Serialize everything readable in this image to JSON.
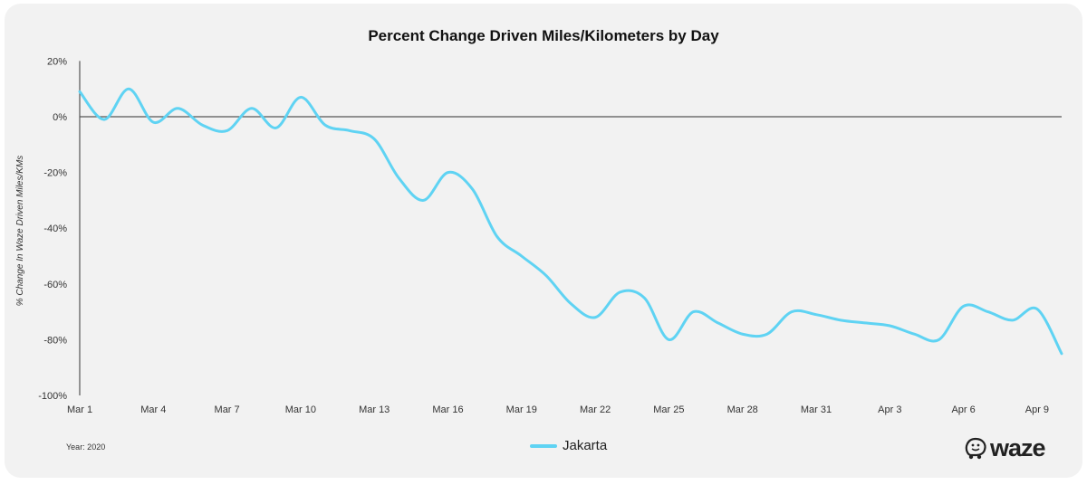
{
  "chart_data": {
    "type": "line",
    "title": "Percent Change Driven Miles/Kilometers by Day",
    "xlabel": "",
    "ylabel": "% Change In Waze Driven Miles/KMs",
    "ylim": [
      -100,
      20
    ],
    "yticks": [
      20,
      0,
      -20,
      -40,
      -60,
      -80,
      -100
    ],
    "ytick_labels": [
      "20%",
      "0%",
      "-20%",
      "-40%",
      "-60%",
      "-80%",
      "-100%"
    ],
    "xtick_labels": [
      "Mar 1",
      "Mar 4",
      "Mar 7",
      "Mar 10",
      "Mar 13",
      "Mar 16",
      "Mar 19",
      "Mar 22",
      "Mar 25",
      "Mar 28",
      "Mar 31",
      "Apr 3",
      "Apr 6",
      "Apr 9"
    ],
    "xtick_step_days": 3,
    "x_days": [
      "Mar 1",
      "Mar 2",
      "Mar 3",
      "Mar 4",
      "Mar 5",
      "Mar 6",
      "Mar 7",
      "Mar 8",
      "Mar 9",
      "Mar 10",
      "Mar 11",
      "Mar 12",
      "Mar 13",
      "Mar 14",
      "Mar 15",
      "Mar 16",
      "Mar 17",
      "Mar 18",
      "Mar 19",
      "Mar 20",
      "Mar 21",
      "Mar 22",
      "Mar 23",
      "Mar 24",
      "Mar 25",
      "Mar 26",
      "Mar 27",
      "Mar 28",
      "Mar 29",
      "Mar 30",
      "Mar 31",
      "Apr 1",
      "Apr 2",
      "Apr 3",
      "Apr 4",
      "Apr 5",
      "Apr 6",
      "Apr 7",
      "Apr 8",
      "Apr 9",
      "Apr 10"
    ],
    "series": [
      {
        "name": "Jakarta",
        "color": "#5fd3f3",
        "values": [
          9,
          -1,
          10,
          -2,
          3,
          -3,
          -5,
          3,
          -4,
          7,
          -3,
          -5,
          -8,
          -22,
          -30,
          -20,
          -26,
          -43,
          -50,
          -57,
          -67,
          -72,
          -63,
          -65,
          -80,
          -70,
          -74,
          -78,
          -78,
          -70,
          -71,
          -73,
          -74,
          -75,
          -78,
          -80,
          -68,
          -70,
          -73,
          -69,
          -85
        ]
      }
    ],
    "legend": "bottom-center",
    "grid": false
  },
  "footer": {
    "year_note": "Year: 2020",
    "logo_text": "waze"
  }
}
